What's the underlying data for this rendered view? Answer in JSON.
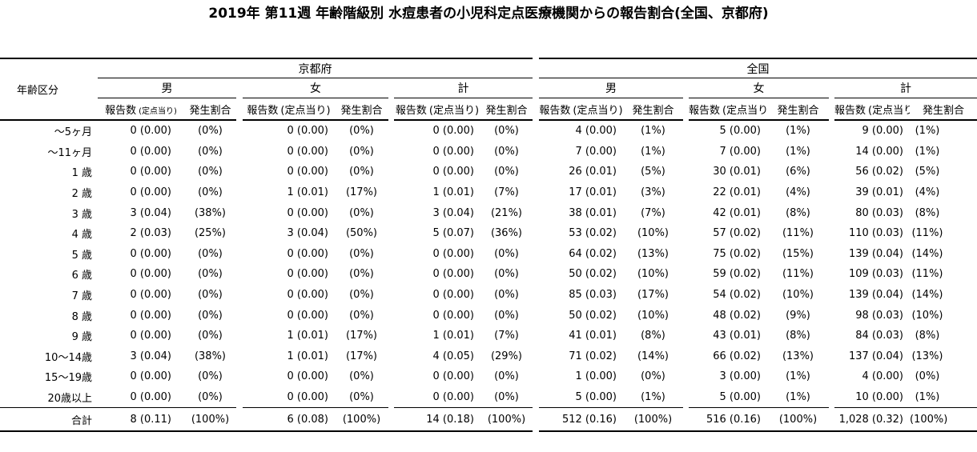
{
  "title": "2019年 第11週 年齢階級別 水痘患者の小児科定点医療機関からの報告割合(全国、京都府)",
  "chart_data": {
    "type": "table",
    "title": "2019年 第11週 年齢階級別 水痘患者の小児科定点医療機関からの報告割合(全国、京都府)",
    "age_header": "年齢区分",
    "sections": [
      {
        "label": "京都府",
        "sexes": [
          "男",
          "女",
          "計"
        ]
      },
      {
        "label": "全国",
        "sexes": [
          "男",
          "女",
          "計"
        ]
      }
    ],
    "columns": {
      "report": "報告数",
      "report_paren": "(定点当り)",
      "rate": "発生割合"
    },
    "rows": [
      {
        "age": "～5ヶ月",
        "cells": [
          [
            "0 (0.00)",
            "(0%)"
          ],
          [
            "0 (0.00)",
            "(0%)"
          ],
          [
            "0 (0.00)",
            "(0%)"
          ],
          [
            "4 (0.00)",
            "(1%)"
          ],
          [
            "5 (0.00)",
            "(1%)"
          ],
          [
            "9 (0.00)",
            "(1%)"
          ]
        ]
      },
      {
        "age": "～11ヶ月",
        "cells": [
          [
            "0 (0.00)",
            "(0%)"
          ],
          [
            "0 (0.00)",
            "(0%)"
          ],
          [
            "0 (0.00)",
            "(0%)"
          ],
          [
            "7 (0.00)",
            "(1%)"
          ],
          [
            "7 (0.00)",
            "(1%)"
          ],
          [
            "14 (0.00)",
            "(1%)"
          ]
        ]
      },
      {
        "age": "1 歳",
        "cells": [
          [
            "0 (0.00)",
            "(0%)"
          ],
          [
            "0 (0.00)",
            "(0%)"
          ],
          [
            "0 (0.00)",
            "(0%)"
          ],
          [
            "26 (0.01)",
            "(5%)"
          ],
          [
            "30 (0.01)",
            "(6%)"
          ],
          [
            "56 (0.02)",
            "(5%)"
          ]
        ]
      },
      {
        "age": "2 歳",
        "cells": [
          [
            "0 (0.00)",
            "(0%)"
          ],
          [
            "1 (0.01)",
            "(17%)"
          ],
          [
            "1 (0.01)",
            "(7%)"
          ],
          [
            "17 (0.01)",
            "(3%)"
          ],
          [
            "22 (0.01)",
            "(4%)"
          ],
          [
            "39 (0.01)",
            "(4%)"
          ]
        ]
      },
      {
        "age": "3 歳",
        "cells": [
          [
            "3 (0.04)",
            "(38%)"
          ],
          [
            "0 (0.00)",
            "(0%)"
          ],
          [
            "3 (0.04)",
            "(21%)"
          ],
          [
            "38 (0.01)",
            "(7%)"
          ],
          [
            "42 (0.01)",
            "(8%)"
          ],
          [
            "80 (0.03)",
            "(8%)"
          ]
        ]
      },
      {
        "age": "4 歳",
        "cells": [
          [
            "2 (0.03)",
            "(25%)"
          ],
          [
            "3 (0.04)",
            "(50%)"
          ],
          [
            "5 (0.07)",
            "(36%)"
          ],
          [
            "53 (0.02)",
            "(10%)"
          ],
          [
            "57 (0.02)",
            "(11%)"
          ],
          [
            "110 (0.03)",
            "(11%)"
          ]
        ]
      },
      {
        "age": "5 歳",
        "cells": [
          [
            "0 (0.00)",
            "(0%)"
          ],
          [
            "0 (0.00)",
            "(0%)"
          ],
          [
            "0 (0.00)",
            "(0%)"
          ],
          [
            "64 (0.02)",
            "(13%)"
          ],
          [
            "75 (0.02)",
            "(15%)"
          ],
          [
            "139 (0.04)",
            "(14%)"
          ]
        ]
      },
      {
        "age": "6 歳",
        "cells": [
          [
            "0 (0.00)",
            "(0%)"
          ],
          [
            "0 (0.00)",
            "(0%)"
          ],
          [
            "0 (0.00)",
            "(0%)"
          ],
          [
            "50 (0.02)",
            "(10%)"
          ],
          [
            "59 (0.02)",
            "(11%)"
          ],
          [
            "109 (0.03)",
            "(11%)"
          ]
        ]
      },
      {
        "age": "7 歳",
        "cells": [
          [
            "0 (0.00)",
            "(0%)"
          ],
          [
            "0 (0.00)",
            "(0%)"
          ],
          [
            "0 (0.00)",
            "(0%)"
          ],
          [
            "85 (0.03)",
            "(17%)"
          ],
          [
            "54 (0.02)",
            "(10%)"
          ],
          [
            "139 (0.04)",
            "(14%)"
          ]
        ]
      },
      {
        "age": "8 歳",
        "cells": [
          [
            "0 (0.00)",
            "(0%)"
          ],
          [
            "0 (0.00)",
            "(0%)"
          ],
          [
            "0 (0.00)",
            "(0%)"
          ],
          [
            "50 (0.02)",
            "(10%)"
          ],
          [
            "48 (0.02)",
            "(9%)"
          ],
          [
            "98 (0.03)",
            "(10%)"
          ]
        ]
      },
      {
        "age": "9 歳",
        "cells": [
          [
            "0 (0.00)",
            "(0%)"
          ],
          [
            "1 (0.01)",
            "(17%)"
          ],
          [
            "1 (0.01)",
            "(7%)"
          ],
          [
            "41 (0.01)",
            "(8%)"
          ],
          [
            "43 (0.01)",
            "(8%)"
          ],
          [
            "84 (0.03)",
            "(8%)"
          ]
        ]
      },
      {
        "age": "10～14歳",
        "cells": [
          [
            "3 (0.04)",
            "(38%)"
          ],
          [
            "1 (0.01)",
            "(17%)"
          ],
          [
            "4 (0.05)",
            "(29%)"
          ],
          [
            "71 (0.02)",
            "(14%)"
          ],
          [
            "66 (0.02)",
            "(13%)"
          ],
          [
            "137 (0.04)",
            "(13%)"
          ]
        ]
      },
      {
        "age": "15～19歳",
        "cells": [
          [
            "0 (0.00)",
            "(0%)"
          ],
          [
            "0 (0.00)",
            "(0%)"
          ],
          [
            "0 (0.00)",
            "(0%)"
          ],
          [
            "1 (0.00)",
            "(0%)"
          ],
          [
            "3 (0.00)",
            "(1%)"
          ],
          [
            "4 (0.00)",
            "(0%)"
          ]
        ]
      },
      {
        "age": "20歳以上",
        "cells": [
          [
            "0 (0.00)",
            "(0%)"
          ],
          [
            "0 (0.00)",
            "(0%)"
          ],
          [
            "0 (0.00)",
            "(0%)"
          ],
          [
            "5 (0.00)",
            "(1%)"
          ],
          [
            "5 (0.00)",
            "(1%)"
          ],
          [
            "10 (0.00)",
            "(1%)"
          ]
        ]
      },
      {
        "age": "合計",
        "is_total": true,
        "cells": [
          [
            "8 (0.11)",
            "(100%)"
          ],
          [
            "6 (0.08)",
            "(100%)"
          ],
          [
            "14 (0.18)",
            "(100%)"
          ],
          [
            "512 (0.16)",
            "(100%)"
          ],
          [
            "516 (0.16)",
            "(100%)"
          ],
          [
            "1,028 (0.32)",
            "(100%)"
          ]
        ]
      }
    ]
  }
}
